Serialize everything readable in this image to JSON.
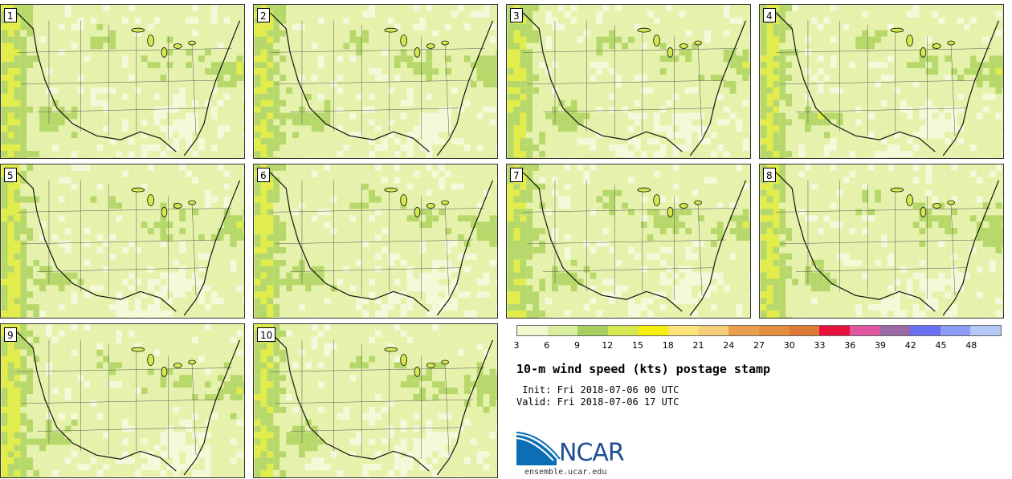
{
  "figure": {
    "title": "10-m wind speed (kts) postage stamp",
    "init": " Init: Fri 2018-07-06 00 UTC",
    "valid": "Valid: Fri 2018-07-06 17 UTC"
  },
  "panels": [
    {
      "number": "1"
    },
    {
      "number": "2"
    },
    {
      "number": "3"
    },
    {
      "number": "4"
    },
    {
      "number": "5"
    },
    {
      "number": "6"
    },
    {
      "number": "7"
    },
    {
      "number": "8"
    },
    {
      "number": "9"
    },
    {
      "number": "10"
    }
  ],
  "colorbar": {
    "unit": "kts",
    "tick_labels": [
      "3",
      "6",
      "9",
      "12",
      "15",
      "18",
      "21",
      "24",
      "27",
      "30",
      "33",
      "36",
      "39",
      "42",
      "45",
      "48"
    ],
    "colors": [
      "#f1f8d0",
      "#d9ee9e",
      "#a8cf60",
      "#d6e84f",
      "#f7ee0e",
      "#fbe37a",
      "#f4cd7a",
      "#ea9f4e",
      "#e48e3e",
      "#dc7a36",
      "#e8103e",
      "#e056a0",
      "#9a6aa8",
      "#6a6ef0",
      "#8a9cf8",
      "#b6c8f8"
    ]
  },
  "branding": {
    "logo_text": "NCAR",
    "website": "ensemble.ucar.edu"
  }
}
